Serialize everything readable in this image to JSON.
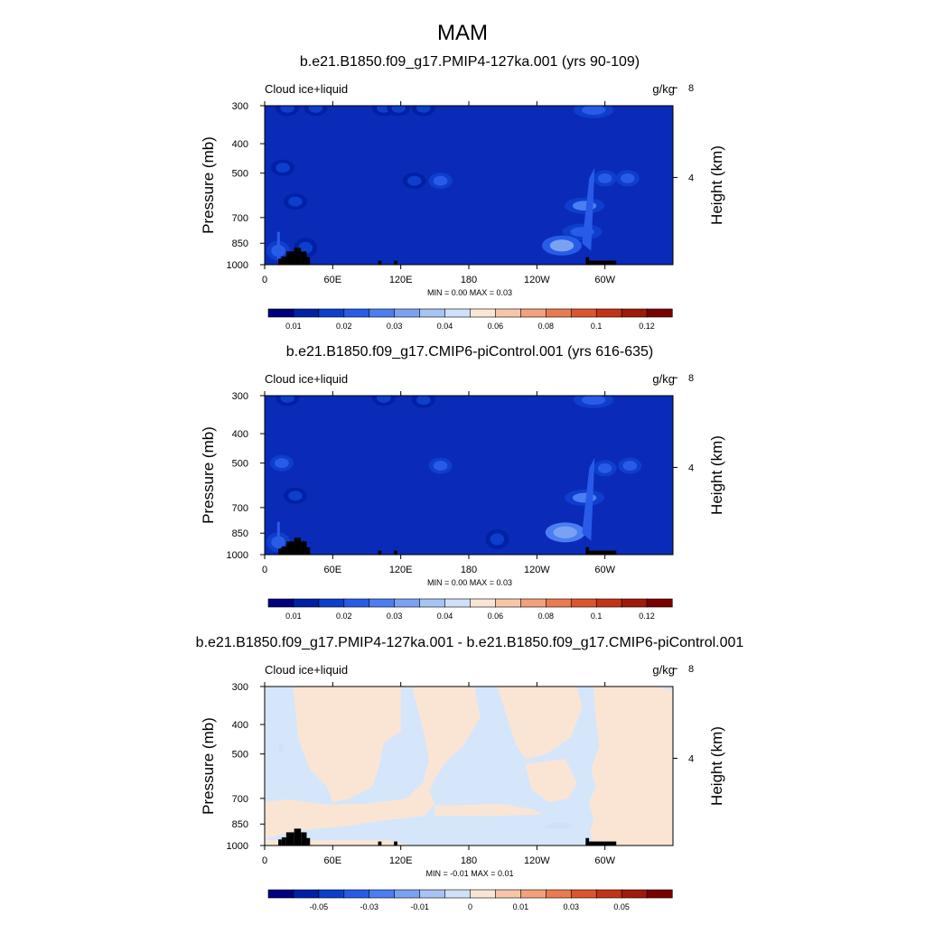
{
  "title": "MAM",
  "colors": {
    "land": "#000000",
    "frame": "#000000",
    "background": "#ffffff"
  },
  "chart_data": [
    {
      "type": "heatmap",
      "title": "b.e21.B1850.f09_g17.PMIP4-127ka.001 (yrs 90-109)",
      "left_label": "Cloud ice+liquid",
      "right_label": "g/kg",
      "ylabel": "Pressure (mb)",
      "ylabel_right": "Height (km)",
      "x_ticks": [
        "0",
        "60E",
        "120E",
        "180",
        "120W",
        "60W"
      ],
      "x_tick_values": [
        0,
        60,
        120,
        180,
        240,
        300
      ],
      "xlim": [
        0,
        360
      ],
      "y_ticks": [
        "300",
        "400",
        "500",
        "700",
        "850",
        "1000"
      ],
      "y_tick_values": [
        300,
        400,
        500,
        700,
        850,
        1000
      ],
      "ylim": [
        1000,
        300
      ],
      "y_right_ticks": [
        "8",
        "4"
      ],
      "y_right_tick_values": [
        8,
        4
      ],
      "minmax_text": "MIN =   0.00  MAX =   0.03",
      "min": 0.0,
      "max": 0.03,
      "field_base_color": "#0a2bb8",
      "features": [
        {
          "lon": 20,
          "p": 305,
          "value": 0.014
        },
        {
          "lon": 45,
          "p": 305,
          "value": 0.012
        },
        {
          "lon": 105,
          "p": 305,
          "value": 0.013
        },
        {
          "lon": 118,
          "p": 305,
          "value": 0.013
        },
        {
          "lon": 140,
          "p": 305,
          "value": 0.013
        },
        {
          "lon": 290,
          "p": 310,
          "value": 0.016
        },
        {
          "lon": 16,
          "p": 480,
          "value": 0.014
        },
        {
          "lon": 155,
          "p": 530,
          "value": 0.015
        },
        {
          "lon": 132,
          "p": 530,
          "value": 0.011
        },
        {
          "lon": 27,
          "p": 620,
          "value": 0.014
        },
        {
          "lon": 300,
          "p": 520,
          "value": 0.018
        },
        {
          "lon": 320,
          "p": 520,
          "value": 0.015
        },
        {
          "lon": 282,
          "p": 640,
          "value": 0.02
        },
        {
          "lon": 280,
          "p": 780,
          "value": 0.016
        },
        {
          "lon": 262,
          "p": 865,
          "value": 0.028
        },
        {
          "lon": 12,
          "p": 900,
          "value": 0.016
        },
        {
          "lon": 36,
          "p": 880,
          "value": 0.014
        }
      ],
      "land_boxes": [
        {
          "lon0": 12,
          "lon1": 15,
          "p0": 955,
          "p1": 1000
        },
        {
          "lon0": 15,
          "lon1": 19,
          "p0": 940,
          "p1": 1000
        },
        {
          "lon0": 19,
          "lon1": 26,
          "p0": 905,
          "p1": 1000
        },
        {
          "lon0": 26,
          "lon1": 32,
          "p0": 880,
          "p1": 1000
        },
        {
          "lon0": 32,
          "lon1": 37,
          "p0": 905,
          "p1": 1000
        },
        {
          "lon0": 37,
          "lon1": 40,
          "p0": 945,
          "p1": 1000
        },
        {
          "lon0": 100,
          "lon1": 103,
          "p0": 970,
          "p1": 1000
        },
        {
          "lon0": 114,
          "lon1": 117,
          "p0": 970,
          "p1": 1000
        },
        {
          "lon0": 283,
          "lon1": 286,
          "p0": 945,
          "p1": 1000
        },
        {
          "lon0": 286,
          "lon1": 310,
          "p0": 970,
          "p1": 1000
        }
      ],
      "colorbar": {
        "labels": [
          "0.01",
          "0.02",
          "0.03",
          "0.04",
          "0.06",
          "0.08",
          "0.1",
          "0.12"
        ],
        "colors": [
          "#00007f",
          "#0020a6",
          "#0d3fcc",
          "#285ce8",
          "#4b7ef0",
          "#7aa2f2",
          "#a6c3f4",
          "#cfe0f8",
          "#fae5d4",
          "#f6c6a8",
          "#f1a17c",
          "#ea7a52",
          "#dd552e",
          "#c23418",
          "#a01a0a",
          "#7a0000"
        ]
      }
    },
    {
      "type": "heatmap",
      "title": "b.e21.B1850.f09_g17.CMIP6-piControl.001 (yrs 616-635)",
      "left_label": "Cloud ice+liquid",
      "right_label": "g/kg",
      "ylabel": "Pressure (mb)",
      "ylabel_right": "Height (km)",
      "x_ticks": [
        "0",
        "60E",
        "120E",
        "180",
        "120W",
        "60W"
      ],
      "x_tick_values": [
        0,
        60,
        120,
        180,
        240,
        300
      ],
      "xlim": [
        0,
        360
      ],
      "y_ticks": [
        "300",
        "400",
        "500",
        "700",
        "850",
        "1000"
      ],
      "y_tick_values": [
        300,
        400,
        500,
        700,
        850,
        1000
      ],
      "ylim": [
        1000,
        300
      ],
      "y_right_ticks": [
        "8",
        "4"
      ],
      "y_right_tick_values": [
        8,
        4
      ],
      "minmax_text": "MIN =   0.00  MAX =   0.03",
      "min": 0.0,
      "max": 0.03,
      "field_base_color": "#0a2bb8",
      "features": [
        {
          "lon": 20,
          "p": 305,
          "value": 0.014
        },
        {
          "lon": 105,
          "p": 305,
          "value": 0.013
        },
        {
          "lon": 140,
          "p": 310,
          "value": 0.013
        },
        {
          "lon": 290,
          "p": 310,
          "value": 0.016
        },
        {
          "lon": 15,
          "p": 500,
          "value": 0.018
        },
        {
          "lon": 155,
          "p": 510,
          "value": 0.018
        },
        {
          "lon": 27,
          "p": 640,
          "value": 0.014
        },
        {
          "lon": 300,
          "p": 520,
          "value": 0.018
        },
        {
          "lon": 322,
          "p": 510,
          "value": 0.018
        },
        {
          "lon": 282,
          "p": 650,
          "value": 0.02
        },
        {
          "lon": 265,
          "p": 845,
          "value": 0.029
        },
        {
          "lon": 205,
          "p": 890,
          "value": 0.012
        },
        {
          "lon": 12,
          "p": 910,
          "value": 0.016
        }
      ],
      "land_boxes": [
        {
          "lon0": 12,
          "lon1": 15,
          "p0": 955,
          "p1": 1000
        },
        {
          "lon0": 15,
          "lon1": 19,
          "p0": 940,
          "p1": 1000
        },
        {
          "lon0": 19,
          "lon1": 26,
          "p0": 905,
          "p1": 1000
        },
        {
          "lon0": 26,
          "lon1": 32,
          "p0": 880,
          "p1": 1000
        },
        {
          "lon0": 32,
          "lon1": 37,
          "p0": 905,
          "p1": 1000
        },
        {
          "lon0": 37,
          "lon1": 40,
          "p0": 945,
          "p1": 1000
        },
        {
          "lon0": 100,
          "lon1": 103,
          "p0": 970,
          "p1": 1000
        },
        {
          "lon0": 114,
          "lon1": 117,
          "p0": 970,
          "p1": 1000
        },
        {
          "lon0": 283,
          "lon1": 286,
          "p0": 945,
          "p1": 1000
        },
        {
          "lon0": 286,
          "lon1": 310,
          "p0": 970,
          "p1": 1000
        }
      ],
      "colorbar": {
        "labels": [
          "0.01",
          "0.02",
          "0.03",
          "0.04",
          "0.06",
          "0.08",
          "0.1",
          "0.12"
        ],
        "colors": [
          "#00007f",
          "#0020a6",
          "#0d3fcc",
          "#285ce8",
          "#4b7ef0",
          "#7aa2f2",
          "#a6c3f4",
          "#cfe0f8",
          "#fae5d4",
          "#f6c6a8",
          "#f1a17c",
          "#ea7a52",
          "#dd552e",
          "#c23418",
          "#a01a0a",
          "#7a0000"
        ]
      }
    },
    {
      "type": "heatmap",
      "title": "b.e21.B1850.f09_g17.PMIP4-127ka.001 - b.e21.B1850.f09_g17.CMIP6-piControl.001",
      "left_label": "Cloud ice+liquid",
      "right_label": "g/kg",
      "ylabel": "Pressure (mb)",
      "ylabel_right": "Height (km)",
      "x_ticks": [
        "0",
        "60E",
        "120E",
        "180",
        "120W",
        "60W"
      ],
      "x_tick_values": [
        0,
        60,
        120,
        180,
        240,
        300
      ],
      "xlim": [
        0,
        360
      ],
      "y_ticks": [
        "300",
        "400",
        "500",
        "700",
        "850",
        "1000"
      ],
      "y_tick_values": [
        300,
        400,
        500,
        700,
        850,
        1000
      ],
      "ylim": [
        1000,
        300
      ],
      "y_right_ticks": [
        "8",
        "4"
      ],
      "y_right_tick_values": [
        8,
        4
      ],
      "minmax_text": "MIN =  -0.01  MAX =   0.01",
      "min": -0.01,
      "max": 0.01,
      "field_base_color": "#d6e6fa",
      "regions": [
        {
          "value": 0.001,
          "points": [
            [
              25,
              300
            ],
            [
              120,
              300
            ],
            [
              120,
              420
            ],
            [
              105,
              460
            ],
            [
              100,
              560
            ],
            [
              95,
              640
            ],
            [
              75,
              700
            ],
            [
              60,
              720
            ],
            [
              55,
              640
            ],
            [
              40,
              560
            ],
            [
              30,
              450
            ]
          ]
        },
        {
          "value": 0.001,
          "points": [
            [
              130,
              300
            ],
            [
              185,
              300
            ],
            [
              190,
              380
            ],
            [
              175,
              470
            ],
            [
              160,
              530
            ],
            [
              150,
              600
            ],
            [
              145,
              660
            ],
            [
              150,
              730
            ],
            [
              140,
              800
            ],
            [
              100,
              830
            ],
            [
              75,
              860
            ],
            [
              45,
              880
            ],
            [
              25,
              900
            ],
            [
              10,
              930
            ],
            [
              0,
              950
            ],
            [
              0,
              720
            ],
            [
              20,
              705
            ],
            [
              55,
              735
            ],
            [
              90,
              730
            ],
            [
              125,
              700
            ],
            [
              140,
              620
            ],
            [
              145,
              520
            ],
            [
              140,
              420
            ]
          ]
        },
        {
          "value": 0.001,
          "points": [
            [
              205,
              300
            ],
            [
              275,
              300
            ],
            [
              280,
              350
            ],
            [
              270,
              440
            ],
            [
              248,
              500
            ],
            [
              230,
              520
            ],
            [
              222,
              470
            ],
            [
              215,
              390
            ]
          ]
        },
        {
          "value": 0.001,
          "points": [
            [
              290,
              300
            ],
            [
              345,
              300
            ],
            [
              360,
              310
            ],
            [
              360,
              1000
            ],
            [
              290,
              1000
            ],
            [
              287,
              900
            ],
            [
              290,
              820
            ],
            [
              286,
              720
            ],
            [
              292,
              640
            ],
            [
              288,
              560
            ],
            [
              295,
              470
            ],
            [
              292,
              380
            ]
          ]
        },
        {
          "value": 0.001,
          "points": [
            [
              150,
              740
            ],
            [
              210,
              730
            ],
            [
              235,
              760
            ],
            [
              245,
              790
            ],
            [
              200,
              800
            ],
            [
              150,
              800
            ]
          ]
        },
        {
          "value": 0.001,
          "points": [
            [
              230,
              540
            ],
            [
              265,
              520
            ],
            [
              275,
              620
            ],
            [
              268,
              700
            ],
            [
              250,
              720
            ],
            [
              235,
              650
            ]
          ]
        },
        {
          "value": 0.0005,
          "points": [
            [
              0,
              960
            ],
            [
              110,
              960
            ],
            [
              120,
              980
            ],
            [
              125,
              1000
            ],
            [
              0,
              1000
            ]
          ]
        },
        {
          "value": -0.004,
          "points": [
            [
              245,
              860
            ],
            [
              258,
              835
            ],
            [
              272,
              850
            ],
            [
              268,
              880
            ],
            [
              250,
              882
            ]
          ]
        },
        {
          "value": -0.004,
          "points": [
            [
              12,
              470
            ],
            [
              16,
              460
            ],
            [
              17,
              490
            ],
            [
              13,
              495
            ]
          ]
        },
        {
          "value": 0.004,
          "points": [
            [
              28,
              303
            ],
            [
              30,
              300
            ],
            [
              31,
              308
            ],
            [
              28,
              309
            ]
          ]
        }
      ],
      "land_boxes": [
        {
          "lon0": 12,
          "lon1": 15,
          "p0": 955,
          "p1": 1000
        },
        {
          "lon0": 15,
          "lon1": 19,
          "p0": 940,
          "p1": 1000
        },
        {
          "lon0": 19,
          "lon1": 26,
          "p0": 905,
          "p1": 1000
        },
        {
          "lon0": 26,
          "lon1": 32,
          "p0": 880,
          "p1": 1000
        },
        {
          "lon0": 32,
          "lon1": 37,
          "p0": 905,
          "p1": 1000
        },
        {
          "lon0": 37,
          "lon1": 40,
          "p0": 945,
          "p1": 1000
        },
        {
          "lon0": 100,
          "lon1": 103,
          "p0": 970,
          "p1": 1000
        },
        {
          "lon0": 114,
          "lon1": 117,
          "p0": 970,
          "p1": 1000
        },
        {
          "lon0": 283,
          "lon1": 286,
          "p0": 945,
          "p1": 1000
        },
        {
          "lon0": 286,
          "lon1": 310,
          "p0": 970,
          "p1": 1000
        }
      ],
      "colorbar": {
        "labels": [
          "-0.05",
          "-0.03",
          "-0.01",
          "0",
          "0.01",
          "0.03",
          "0.05"
        ],
        "colors": [
          "#00007f",
          "#0020a6",
          "#0d3fcc",
          "#285ce8",
          "#4b7ef0",
          "#7aa2f2",
          "#a6c3f4",
          "#cfe0f8",
          "#fae5d4",
          "#f6c6a8",
          "#f1a17c",
          "#ea7a52",
          "#dd552e",
          "#c23418",
          "#a01a0a",
          "#7a0000"
        ]
      }
    }
  ]
}
